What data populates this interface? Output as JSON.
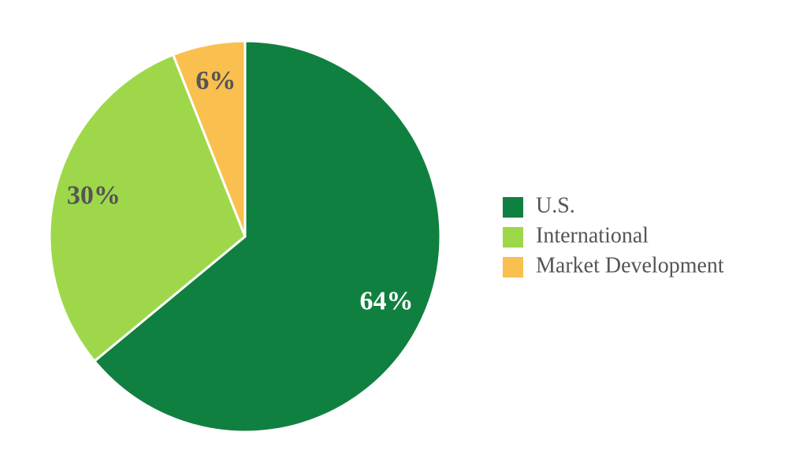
{
  "chart_data": {
    "type": "pie",
    "categories": [
      "U.S.",
      "International",
      "Market Development"
    ],
    "values": [
      64,
      30,
      6
    ],
    "value_labels": [
      "64%",
      "30%",
      "6%"
    ],
    "colors": [
      "#108040",
      "#9ed84a",
      "#f9c04f"
    ],
    "label_colors": [
      "#ffffff",
      "#555555",
      "#555555"
    ],
    "legend": "right"
  }
}
